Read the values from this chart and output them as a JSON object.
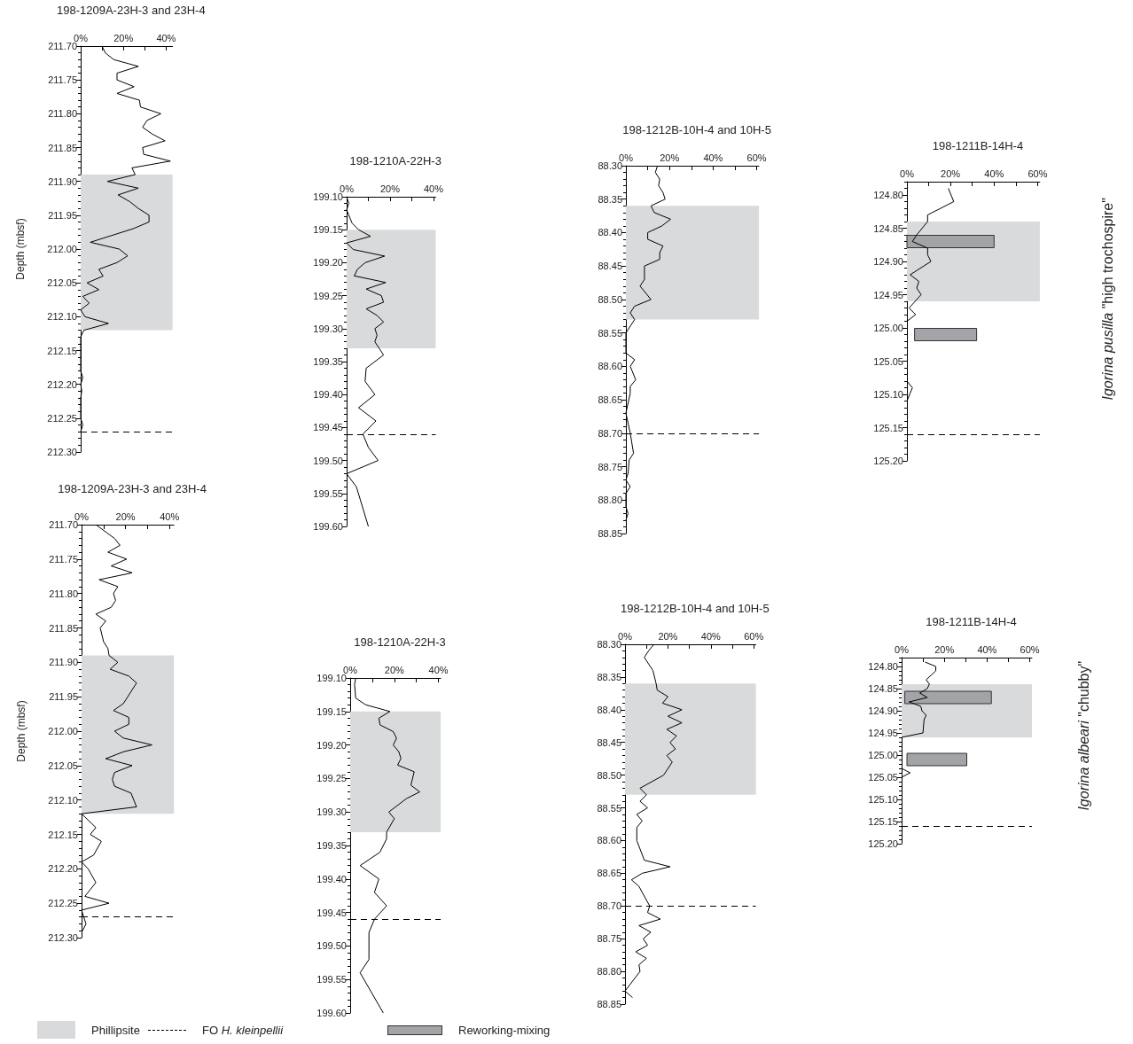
{
  "chart_data": [
    {
      "type": "line",
      "title": "198-1209A-23H-3 and 23H-4",
      "ylabel": "Depth (mbsf)",
      "orientation": "horizontal",
      "marker": "none",
      "legend": "bottom",
      "xlim": [
        0,
        43
      ],
      "xticks": [
        {
          "value": 0,
          "label": "0%"
        },
        {
          "value": 10,
          "label": null
        },
        {
          "value": 20,
          "label": "20%"
        },
        {
          "value": 30,
          "label": null
        },
        {
          "value": 40,
          "label": "40%"
        }
      ],
      "ylim": [
        212.3,
        211.7
      ],
      "yticks": [
        {
          "value": 211.7,
          "label": "211.70"
        },
        211.75,
        {
          "value": 211.8,
          "label": "211.80"
        },
        211.85,
        {
          "value": 211.9,
          "label": "211.90"
        },
        211.95,
        {
          "value": 212,
          "label": "212.00"
        },
        212.05,
        {
          "value": 212.1,
          "label": "212.10"
        },
        212.15,
        {
          "value": 212.2,
          "label": "212.20"
        },
        212.25,
        {
          "value": 212.3,
          "label": "212.30"
        }
      ],
      "series": [
        {
          "color": "#000000",
          "x": [
            211.7,
            211.71,
            211.72,
            211.73,
            211.74,
            211.75,
            211.76,
            211.77,
            211.78,
            211.79,
            211.8,
            211.81,
            211.82,
            211.83,
            211.84,
            211.85,
            211.86,
            211.87,
            211.88,
            211.89,
            211.9,
            211.91,
            211.92,
            211.93,
            211.94,
            211.95,
            211.96,
            211.97,
            211.99,
            212,
            212.01,
            212.02,
            212.03,
            212.04,
            212.05,
            212.06,
            212.07,
            212.08,
            212.09,
            212.1,
            212.11,
            212.12,
            212.13,
            212.18,
            212.19,
            212.2,
            212.21,
            212.22,
            212.25,
            212.26,
            212.27
          ],
          "values": [
            10,
            11.5,
            15.5,
            27,
            17,
            17,
            25,
            17,
            27.5,
            28,
            37.5,
            31,
            29,
            33.5,
            39.5,
            29,
            29.5,
            42,
            24,
            25.5,
            12.5,
            27,
            17.5,
            23,
            27,
            32,
            32,
            24.5,
            4.5,
            18,
            22,
            17,
            8.5,
            10.5,
            3,
            8.5,
            1,
            4,
            0,
            2,
            13,
            1.5,
            0,
            0,
            1,
            0,
            0.5,
            0,
            0,
            1,
            0
          ]
        }
      ],
      "bands": [
        {
          "axis": "y",
          "from": 211.89,
          "to": 212.12,
          "label": "Phillipsite",
          "color": "#d9dadc"
        }
      ],
      "ref_lines": [
        {
          "axis": "y",
          "value": 212.27,
          "label": "FO H. kleinpellii",
          "color": "#000000",
          "line_style": "dashed"
        }
      ]
    },
    {
      "type": "line",
      "title": "198-1210A-22H-3",
      "orientation": "horizontal",
      "marker": "none",
      "xlim": [
        0,
        41
      ],
      "xticks": [
        {
          "value": 0,
          "label": "0%"
        },
        {
          "value": 10,
          "label": null
        },
        {
          "value": 20,
          "label": "20%"
        },
        {
          "value": 30,
          "label": null
        },
        {
          "value": 40,
          "label": "40%"
        }
      ],
      "ylim": [
        199.6,
        199.1
      ],
      "yticks": [
        {
          "value": 199.1,
          "label": "199.10"
        },
        199.15,
        {
          "value": 199.2,
          "label": "199.20"
        },
        199.25,
        {
          "value": 199.3,
          "label": "199.30"
        },
        199.35,
        {
          "value": 199.4,
          "label": "199.40"
        },
        199.45,
        {
          "value": 199.5,
          "label": "199.50"
        },
        199.55,
        {
          "value": 199.6,
          "label": "199.60"
        }
      ],
      "series": [
        {
          "color": "#000000",
          "x": [
            199.1,
            199.11,
            199.12,
            199.14,
            199.15,
            199.16,
            199.17,
            199.18,
            199.19,
            199.2,
            199.21,
            199.22,
            199.23,
            199.24,
            199.25,
            199.26,
            199.27,
            199.28,
            199.29,
            199.3,
            199.31,
            199.32,
            199.33,
            199.34,
            199.36,
            199.38,
            199.4,
            199.42,
            199.44,
            199.46,
            199.48,
            199.5,
            199.52,
            199.54,
            199.6
          ],
          "values": [
            0,
            1,
            0,
            2.5,
            5.5,
            11,
            0,
            3,
            17.5,
            8.5,
            5,
            3.5,
            18,
            9,
            16,
            17,
            9,
            14,
            17,
            13,
            14,
            13,
            15,
            17,
            9,
            8.5,
            13,
            5.5,
            13.5,
            7.5,
            10,
            14.5,
            0,
            4.5,
            10
          ]
        }
      ],
      "bands": [
        {
          "axis": "y",
          "from": 199.15,
          "to": 199.33,
          "color": "#d9dadc"
        }
      ],
      "ref_lines": [
        {
          "axis": "y",
          "value": 199.46,
          "color": "#000000",
          "line_style": "dashed"
        }
      ]
    },
    {
      "type": "line",
      "title": "198-1212B-10H-4 and 10H-5",
      "orientation": "horizontal",
      "marker": "none",
      "xlim": [
        0,
        61
      ],
      "xticks": [
        {
          "value": 0,
          "label": "0%"
        },
        {
          "value": 10,
          "label": null
        },
        {
          "value": 20,
          "label": "20%"
        },
        {
          "value": 30,
          "label": null
        },
        {
          "value": 40,
          "label": "40%"
        },
        {
          "value": 50,
          "label": null
        },
        {
          "value": 60,
          "label": "60%"
        }
      ],
      "ylim": [
        88.85,
        88.3
      ],
      "yticks": [
        {
          "value": 88.3,
          "label": "88.30"
        },
        88.35,
        {
          "value": 88.4,
          "label": "88.40"
        },
        88.45,
        {
          "value": 88.5,
          "label": "88.50"
        },
        88.55,
        {
          "value": 88.6,
          "label": "88.60"
        },
        88.65,
        {
          "value": 88.7,
          "label": "88.70"
        },
        88.75,
        {
          "value": 88.8,
          "label": "88.80"
        },
        88.85
      ],
      "series": [
        {
          "color": "#000000",
          "x": [
            88.3,
            88.31,
            88.32,
            88.33,
            88.34,
            88.35,
            88.36,
            88.37,
            88.38,
            88.39,
            88.4,
            88.41,
            88.42,
            88.43,
            88.44,
            88.45,
            88.47,
            88.48,
            88.5,
            88.51,
            88.52,
            88.53,
            88.55,
            88.58,
            88.59,
            88.6,
            88.62,
            88.63,
            88.64,
            88.67,
            88.7,
            88.73,
            88.74,
            88.76,
            88.77,
            88.78,
            88.79,
            88.81,
            88.82,
            88.83
          ],
          "values": [
            14.5,
            13.5,
            15.5,
            15,
            17,
            18,
            11.5,
            13,
            20.5,
            16.5,
            10,
            10,
            17,
            15.5,
            15.5,
            8.5,
            8.5,
            6.5,
            11.5,
            4,
            2,
            4,
            0,
            0,
            4,
            2,
            4.5,
            2,
            2,
            0,
            2,
            3.5,
            1.5,
            1,
            0,
            2,
            0,
            0,
            1,
            0
          ]
        }
      ],
      "bands": [
        {
          "axis": "y",
          "from": 88.36,
          "to": 88.53,
          "color": "#d9dadc"
        }
      ],
      "ref_lines": [
        {
          "axis": "y",
          "value": 88.7,
          "color": "#000000",
          "line_style": "dashed"
        }
      ]
    },
    {
      "type": "line",
      "title": "198-1211B-14H-4",
      "orientation": "horizontal",
      "marker": "none",
      "annotations": [
        "Igorina pusilla \"high trochospire\""
      ],
      "xlim": [
        0,
        61
      ],
      "xticks": [
        {
          "value": 0,
          "label": "0%"
        },
        {
          "value": 10,
          "label": null
        },
        {
          "value": 20,
          "label": "20%"
        },
        {
          "value": 30,
          "label": null
        },
        {
          "value": 40,
          "label": "40%"
        },
        {
          "value": 50,
          "label": null
        },
        {
          "value": 60,
          "label": "60%"
        }
      ],
      "ylim": [
        125.2,
        124.78
      ],
      "yticks": [
        {
          "value": 124.8,
          "label": "124.80"
        },
        124.85,
        {
          "value": 124.9,
          "label": "124.90"
        },
        124.95,
        {
          "value": 125,
          "label": "125.00"
        },
        125.05,
        {
          "value": 125.1,
          "label": "125.10"
        },
        125.15,
        {
          "value": 125.2,
          "label": "125.20"
        }
      ],
      "series": [
        {
          "color": "#000000",
          "x": [
            124.79,
            124.81,
            124.83,
            124.84,
            124.86,
            124.87,
            124.88,
            124.89,
            124.9,
            124.92,
            124.93,
            124.94,
            124.95,
            124.97,
            124.98,
            124.99,
            null,
            125.08,
            125.09,
            125.11
          ],
          "values": [
            19,
            21.5,
            9.5,
            9.5,
            4.5,
            2.5,
            9.5,
            9.5,
            11,
            1.5,
            5.5,
            4.5,
            6.5,
            1,
            4,
            0,
            null,
            0,
            2.5,
            0
          ]
        },
        {
          "type": "bar",
          "name": "Reworking-mixing",
          "color": "#a3a4a8",
          "x": [
            124.87,
            125.01
          ],
          "values": [
            40,
            28.5
          ],
          "base": [
            0,
            3.5
          ]
        }
      ],
      "bands": [
        {
          "axis": "y",
          "from": 124.84,
          "to": 124.96,
          "color": "#d9dadc"
        }
      ],
      "ref_lines": [
        {
          "axis": "y",
          "value": 125.16,
          "color": "#000000",
          "line_style": "dashed"
        }
      ]
    },
    {
      "type": "line",
      "title": "198-1209A-23H-3 and 23H-4",
      "ylabel": "Depth (mbsf)",
      "orientation": "horizontal",
      "marker": "none",
      "xlim": [
        0,
        42
      ],
      "xticks": [
        {
          "value": 0,
          "label": "0%"
        },
        {
          "value": 10,
          "label": null
        },
        {
          "value": 20,
          "label": "20%"
        },
        {
          "value": 30,
          "label": null
        },
        {
          "value": 40,
          "label": "40%"
        }
      ],
      "ylim": [
        212.3,
        211.7
      ],
      "yticks": [
        {
          "value": 211.7,
          "label": "211.70"
        },
        211.75,
        {
          "value": 211.8,
          "label": "211.80"
        },
        211.85,
        {
          "value": 211.9,
          "label": "211.90"
        },
        211.95,
        {
          "value": 212,
          "label": "212.00"
        },
        212.05,
        {
          "value": 212.1,
          "label": "212.10"
        },
        212.15,
        {
          "value": 212.2,
          "label": "212.20"
        },
        212.25,
        {
          "value": 212.3,
          "label": "212.30"
        }
      ],
      "series": [
        {
          "color": "#000000",
          "x": [
            211.7,
            211.72,
            211.73,
            211.74,
            211.75,
            211.76,
            211.77,
            211.78,
            211.79,
            211.8,
            211.81,
            211.82,
            211.83,
            211.84,
            211.85,
            211.87,
            211.88,
            211.89,
            211.9,
            211.91,
            211.92,
            211.93,
            211.96,
            211.97,
            211.98,
            211.99,
            212,
            212.01,
            212.02,
            212.03,
            212.04,
            212.05,
            212.06,
            212.07,
            212.08,
            212.09,
            212.11,
            212.12,
            212.14,
            212.15,
            212.16,
            212.18,
            212.19,
            212.2,
            212.22,
            212.24,
            212.25,
            212.26,
            212.28,
            212.29
          ],
          "values": [
            6.5,
            15,
            17.5,
            12,
            20.5,
            13.5,
            23,
            8,
            16.5,
            14.5,
            15.5,
            13.5,
            6.5,
            11,
            8.5,
            10,
            12,
            12.5,
            16.5,
            13,
            21.5,
            25,
            19,
            14.5,
            21.5,
            21.5,
            15,
            19,
            32,
            19,
            11,
            23,
            15,
            14,
            15,
            22.5,
            25,
            0,
            6.5,
            4,
            9,
            5.5,
            0,
            3,
            6.5,
            1.5,
            12.5,
            0,
            2,
            0.5
          ]
        }
      ],
      "bands": [
        {
          "axis": "y",
          "from": 211.89,
          "to": 212.12,
          "color": "#d9dadc"
        }
      ],
      "ref_lines": [
        {
          "axis": "y",
          "value": 212.27,
          "color": "#000000",
          "line_style": "dashed"
        }
      ]
    },
    {
      "type": "line",
      "title": "198-1210A-22H-3",
      "orientation": "horizontal",
      "marker": "none",
      "xlim": [
        0,
        41
      ],
      "xticks": [
        {
          "value": 0,
          "label": "0%"
        },
        {
          "value": 10,
          "label": null
        },
        {
          "value": 20,
          "label": "20%"
        },
        {
          "value": 30,
          "label": null
        },
        {
          "value": 40,
          "label": "40%"
        }
      ],
      "ylim": [
        199.6,
        199.1
      ],
      "yticks": [
        {
          "value": 199.1,
          "label": "199.10"
        },
        199.15,
        {
          "value": 199.2,
          "label": "199.20"
        },
        199.25,
        {
          "value": 199.3,
          "label": "199.30"
        },
        199.35,
        {
          "value": 199.4,
          "label": "199.40"
        },
        199.45,
        {
          "value": 199.5,
          "label": "199.50"
        },
        199.55,
        {
          "value": 199.6,
          "label": "199.60"
        }
      ],
      "series": [
        {
          "color": "#000000",
          "x": [
            199.1,
            199.11,
            199.13,
            199.14,
            199.15,
            199.16,
            199.17,
            199.18,
            199.19,
            199.2,
            199.21,
            199.22,
            199.23,
            199.24,
            199.26,
            199.27,
            199.28,
            199.3,
            199.31,
            199.33,
            199.34,
            199.36,
            199.38,
            199.4,
            199.42,
            199.44,
            199.46,
            199.48,
            199.52,
            199.54,
            199.6
          ],
          "values": [
            2.5,
            2,
            2.5,
            7,
            18,
            13,
            13.5,
            19.5,
            21,
            19.5,
            22,
            23,
            21.5,
            29,
            27.5,
            31.5,
            25.5,
            17.5,
            20,
            16.5,
            16.5,
            13.5,
            4.5,
            13,
            11,
            16.5,
            11,
            8.5,
            8.5,
            4.5,
            15
          ]
        }
      ],
      "bands": [
        {
          "axis": "y",
          "from": 199.15,
          "to": 199.33,
          "color": "#d9dadc"
        }
      ],
      "ref_lines": [
        {
          "axis": "y",
          "value": 199.46,
          "color": "#000000",
          "line_style": "dashed"
        }
      ]
    },
    {
      "type": "line",
      "title": "198-1212B-10H-4 and 10H-5",
      "orientation": "horizontal",
      "marker": "none",
      "xlim": [
        0,
        61
      ],
      "xticks": [
        {
          "value": 0,
          "label": "0%"
        },
        {
          "value": 10,
          "label": null
        },
        {
          "value": 20,
          "label": "20%"
        },
        {
          "value": 30,
          "label": null
        },
        {
          "value": 40,
          "label": "40%"
        },
        {
          "value": 50,
          "label": null
        },
        {
          "value": 60,
          "label": "60%"
        }
      ],
      "ylim": [
        88.85,
        88.3
      ],
      "yticks": [
        {
          "value": 88.3,
          "label": "88.30"
        },
        88.35,
        {
          "value": 88.4,
          "label": "88.40"
        },
        88.45,
        {
          "value": 88.5,
          "label": "88.50"
        },
        88.55,
        {
          "value": 88.6,
          "label": "88.60"
        },
        88.65,
        {
          "value": 88.7,
          "label": "88.70"
        },
        88.75,
        {
          "value": 88.8,
          "label": "88.80"
        },
        88.85
      ],
      "series": [
        {
          "color": "#000000",
          "x": [
            88.3,
            88.31,
            88.32,
            88.34,
            88.36,
            88.37,
            88.38,
            88.39,
            88.4,
            88.41,
            88.42,
            88.43,
            88.44,
            88.45,
            88.46,
            88.47,
            88.48,
            88.5,
            88.52,
            88.53,
            88.54,
            88.55,
            88.56,
            88.57,
            88.58,
            88.6,
            88.63,
            88.64,
            88.65,
            88.66,
            88.67,
            88.7,
            88.71,
            88.72,
            88.73,
            88.74,
            88.75,
            88.76,
            88.77,
            88.78,
            88.79,
            88.8,
            88.83,
            88.84
          ],
          "values": [
            13.5,
            11,
            9,
            13,
            14.5,
            15,
            20,
            17.5,
            26.5,
            20,
            26.5,
            19.5,
            24,
            21,
            23.5,
            19.5,
            22,
            18,
            7,
            10,
            7,
            10.5,
            5.5,
            8,
            5.5,
            5.5,
            9,
            21,
            8,
            3,
            6.5,
            11.5,
            10.5,
            16.5,
            6.5,
            12,
            8.5,
            10.5,
            5,
            10,
            6.5,
            7,
            0,
            3.5
          ]
        }
      ],
      "bands": [
        {
          "axis": "y",
          "from": 88.36,
          "to": 88.53,
          "color": "#d9dadc"
        }
      ],
      "ref_lines": [
        {
          "axis": "y",
          "value": 88.7,
          "color": "#000000",
          "line_style": "dashed"
        }
      ]
    },
    {
      "type": "line",
      "title": "198-1211B-14H-4",
      "orientation": "horizontal",
      "marker": "none",
      "annotations": [
        "Igorina albeari \"chubby\""
      ],
      "xlim": [
        0,
        61
      ],
      "xticks": [
        {
          "value": 0,
          "label": "0%"
        },
        {
          "value": 10,
          "label": null
        },
        {
          "value": 20,
          "label": "20%"
        },
        {
          "value": 30,
          "label": null
        },
        {
          "value": 40,
          "label": "40%"
        },
        {
          "value": 50,
          "label": null
        },
        {
          "value": 60,
          "label": "60%"
        }
      ],
      "ylim": [
        125.2,
        124.78
      ],
      "yticks": [
        {
          "value": 124.8,
          "label": "124.80"
        },
        124.85,
        {
          "value": 124.9,
          "label": "124.90"
        },
        124.95,
        {
          "value": 125,
          "label": "125.00"
        },
        125.05,
        {
          "value": 125.1,
          "label": "125.10"
        },
        125.15,
        {
          "value": 125.2,
          "label": "125.20"
        }
      ],
      "series": [
        {
          "color": "#000000",
          "x": [
            124.79,
            124.8,
            124.81,
            124.83,
            124.84,
            124.85,
            124.86,
            124.87,
            124.88,
            124.89,
            124.9,
            124.91,
            124.92,
            124.95,
            124.96,
            null,
            125.03,
            125.04,
            125.05
          ],
          "values": [
            11,
            16,
            16,
            11.5,
            13,
            12,
            8.5,
            12,
            3.5,
            9,
            9.5,
            11.5,
            10.5,
            10,
            0,
            null,
            0,
            4,
            0
          ]
        },
        {
          "type": "bar",
          "color": "#a3a4a8",
          "x": [
            124.87,
            125.01
          ],
          "values": [
            40.5,
            28
          ],
          "base": [
            1.5,
            2.5
          ]
        }
      ],
      "bands": [
        {
          "axis": "y",
          "from": 124.84,
          "to": 124.96,
          "color": "#d9dadc"
        }
      ],
      "ref_lines": [
        {
          "axis": "y",
          "value": 125.16,
          "color": "#000000",
          "line_style": "dashed"
        }
      ]
    }
  ]
}
